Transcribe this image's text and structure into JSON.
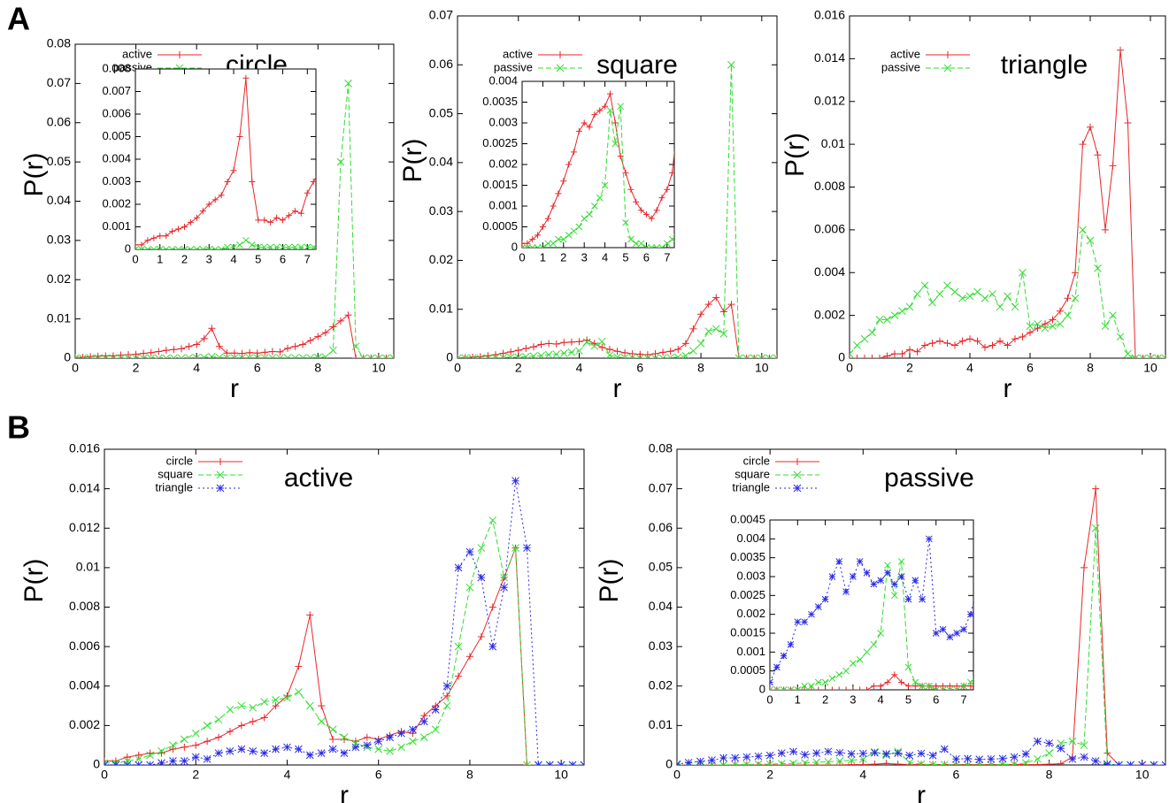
{
  "panel_labels": [
    "A",
    "B"
  ],
  "chart_data": [
    {
      "type": "line",
      "title": "circle",
      "xlabel": "r",
      "ylabel": "P(r)",
      "x": [
        0,
        0.25,
        0.5,
        0.75,
        1,
        1.25,
        1.5,
        1.75,
        2,
        2.25,
        2.5,
        2.75,
        3,
        3.25,
        3.5,
        3.75,
        4,
        4.25,
        4.5,
        4.75,
        5,
        5.25,
        5.5,
        5.75,
        6,
        6.25,
        6.5,
        6.75,
        7,
        7.25,
        7.5,
        7.75,
        8,
        8.25,
        8.5,
        8.75,
        9,
        9.25,
        9.5,
        9.75,
        10,
        10.25,
        10.5
      ],
      "series": [
        {
          "name": "active",
          "color": "#e8262a",
          "marker": "plus",
          "line_style": "solid",
          "values": [
            0.0002,
            0.0002,
            0.0004,
            0.0005,
            0.0006,
            0.0006,
            0.0008,
            0.0009,
            0.001,
            0.0012,
            0.0014,
            0.0017,
            0.002,
            0.0022,
            0.0024,
            0.003,
            0.0035,
            0.005,
            0.0076,
            0.003,
            0.0013,
            0.0013,
            0.0012,
            0.0014,
            0.0013,
            0.0015,
            0.0017,
            0.0016,
            0.0025,
            0.003,
            0.0035,
            0.0045,
            0.0055,
            0.0065,
            0.008,
            0.0095,
            0.011,
            0,
            0,
            0,
            0,
            0,
            0
          ]
        },
        {
          "name": "passive",
          "color": "#33dd33",
          "marker": "cross",
          "line_style": "dashed",
          "values": [
            0,
            0,
            0,
            0,
            0,
            0,
            0,
            0,
            0,
            0,
            0,
            0,
            0,
            0,
            0,
            0.0001,
            0.0001,
            0.0002,
            0.0004,
            0.0002,
            0.0001,
            0.0001,
            0.0001,
            0.0001,
            0.0001,
            0.0001,
            0.0001,
            0.0001,
            0.0001,
            0.0001,
            0.0001,
            0.0001,
            0.0002,
            0.0003,
            0.002,
            0.05,
            0.07,
            0.003,
            0,
            0,
            0,
            0,
            0
          ]
        }
      ],
      "xlim": [
        0,
        10.5
      ],
      "ylim": [
        0,
        0.08
      ],
      "xticks": [
        0,
        2,
        4,
        6,
        8,
        10
      ],
      "yticks": [
        0,
        0.01,
        0.02,
        0.03,
        0.04,
        0.05,
        0.06,
        0.07,
        0.08
      ],
      "inset": {
        "xlim": [
          0,
          7.35
        ],
        "ylim": [
          0,
          0.008
        ],
        "xticks": [
          0,
          1,
          2,
          3,
          4,
          5,
          6,
          7
        ],
        "yticks": [
          0,
          0.001,
          0.002,
          0.003,
          0.004,
          0.005,
          0.006,
          0.007,
          0.008
        ]
      }
    },
    {
      "type": "line",
      "title": "square",
      "xlabel": "r",
      "ylabel": "P(r)",
      "x": [
        0,
        0.25,
        0.5,
        0.75,
        1,
        1.25,
        1.5,
        1.75,
        2,
        2.25,
        2.5,
        2.75,
        3,
        3.25,
        3.5,
        3.75,
        4,
        4.25,
        4.5,
        4.75,
        5,
        5.25,
        5.5,
        5.75,
        6,
        6.25,
        6.5,
        6.75,
        7,
        7.25,
        7.5,
        7.75,
        8,
        8.25,
        8.5,
        8.75,
        9,
        9.25,
        9.5,
        9.75,
        10,
        10.25,
        10.5
      ],
      "series": [
        {
          "name": "active",
          "color": "#e8262a",
          "marker": "plus",
          "line_style": "solid",
          "values": [
            0.0001,
            0.0001,
            0.0002,
            0.0003,
            0.0005,
            0.0007,
            0.001,
            0.0013,
            0.0016,
            0.002,
            0.0023,
            0.0028,
            0.003,
            0.0029,
            0.0032,
            0.0033,
            0.0034,
            0.0037,
            0.003,
            0.0022,
            0.0018,
            0.0014,
            0.0011,
            0.0009,
            0.0008,
            0.0007,
            0.0009,
            0.0012,
            0.0014,
            0.0018,
            0.003,
            0.006,
            0.009,
            0.011,
            0.0124,
            0.0095,
            0.011,
            0,
            0,
            0,
            0,
            0,
            0
          ]
        },
        {
          "name": "passive",
          "color": "#33dd33",
          "marker": "cross",
          "line_style": "dashed",
          "values": [
            0,
            0,
            0,
            0,
            0,
            0.0001,
            0.0001,
            0.0002,
            0.0002,
            0.0003,
            0.0004,
            0.0005,
            0.0007,
            0.0008,
            0.001,
            0.0012,
            0.0015,
            0.0033,
            0.0025,
            0.0034,
            0.0006,
            0.0002,
            0.0001,
            0.0001,
            0,
            0,
            0,
            0,
            0.0001,
            0.0002,
            0.0005,
            0.0015,
            0.003,
            0.0055,
            0.006,
            0.005,
            0.06,
            0,
            0,
            0,
            0,
            0,
            0
          ]
        }
      ],
      "xlim": [
        0,
        10.5
      ],
      "ylim": [
        0,
        0.07
      ],
      "xticks": [
        0,
        2,
        4,
        6,
        8,
        10
      ],
      "yticks": [
        0,
        0.01,
        0.02,
        0.03,
        0.04,
        0.05,
        0.06,
        0.07
      ],
      "inset": {
        "xlim": [
          0,
          7.35
        ],
        "ylim": [
          0,
          0.004
        ],
        "xticks": [
          0,
          1,
          2,
          3,
          4,
          5,
          6,
          7
        ],
        "yticks": [
          0,
          0.0005,
          0.001,
          0.0015,
          0.002,
          0.0025,
          0.003,
          0.0035,
          0.004
        ]
      }
    },
    {
      "type": "line",
      "title": "triangle",
      "xlabel": "r",
      "ylabel": "P(r)",
      "x": [
        0,
        0.25,
        0.5,
        0.75,
        1,
        1.25,
        1.5,
        1.75,
        2,
        2.25,
        2.5,
        2.75,
        3,
        3.25,
        3.5,
        3.75,
        4,
        4.25,
        4.5,
        4.75,
        5,
        5.25,
        5.5,
        5.75,
        6,
        6.25,
        6.5,
        6.75,
        7,
        7.25,
        7.5,
        7.75,
        8,
        8.25,
        8.5,
        8.75,
        9,
        9.25,
        9.5,
        9.75,
        10,
        10.25,
        10.5
      ],
      "series": [
        {
          "name": "active",
          "color": "#e8262a",
          "marker": "plus",
          "line_style": "solid",
          "values": [
            0,
            0,
            0,
            0,
            0,
            0.0001,
            0.0002,
            0.0002,
            0.0004,
            0.0003,
            0.0006,
            0.0007,
            0.0008,
            0.0007,
            0.0006,
            0.0008,
            0.0009,
            0.0008,
            0.0005,
            0.0006,
            0.0008,
            0.0006,
            0.0009,
            0.001,
            0.0012,
            0.0014,
            0.0016,
            0.0018,
            0.0022,
            0.0028,
            0.004,
            0.01,
            0.0108,
            0.0095,
            0.006,
            0.009,
            0.0144,
            0.011,
            0,
            0,
            0,
            0,
            0
          ]
        },
        {
          "name": "passive",
          "color": "#33dd33",
          "marker": "cross",
          "line_style": "dashed",
          "values": [
            0.0002,
            0.0006,
            0.0009,
            0.0012,
            0.0018,
            0.0018,
            0.002,
            0.0022,
            0.0024,
            0.003,
            0.0034,
            0.0026,
            0.003,
            0.0034,
            0.0031,
            0.0028,
            0.0029,
            0.0031,
            0.0028,
            0.003,
            0.0024,
            0.0029,
            0.0024,
            0.004,
            0.0015,
            0.0016,
            0.0014,
            0.0015,
            0.0016,
            0.002,
            0.0028,
            0.006,
            0.0055,
            0.0042,
            0.0015,
            0.002,
            0.001,
            0.0002,
            0,
            0,
            0,
            0,
            0
          ]
        }
      ],
      "xlim": [
        0,
        10.5
      ],
      "ylim": [
        0,
        0.016
      ],
      "xticks": [
        0,
        2,
        4,
        6,
        8,
        10
      ],
      "yticks": [
        0,
        0.002,
        0.004,
        0.006,
        0.008,
        0.01,
        0.012,
        0.014,
        0.016
      ]
    },
    {
      "type": "line",
      "title": "active",
      "xlabel": "r",
      "ylabel": "P(r)",
      "x": [
        0,
        0.25,
        0.5,
        0.75,
        1,
        1.25,
        1.5,
        1.75,
        2,
        2.25,
        2.5,
        2.75,
        3,
        3.25,
        3.5,
        3.75,
        4,
        4.25,
        4.5,
        4.75,
        5,
        5.25,
        5.5,
        5.75,
        6,
        6.25,
        6.5,
        6.75,
        7,
        7.25,
        7.5,
        7.75,
        8,
        8.25,
        8.5,
        8.75,
        9,
        9.25,
        9.5,
        9.75,
        10,
        10.25,
        10.5
      ],
      "series": [
        {
          "name": "circle",
          "color": "#e8262a",
          "marker": "plus",
          "line_style": "solid",
          "values": [
            0.0002,
            0.0002,
            0.0004,
            0.0005,
            0.0006,
            0.0006,
            0.0008,
            0.0009,
            0.001,
            0.0012,
            0.0014,
            0.0017,
            0.002,
            0.0022,
            0.0024,
            0.003,
            0.0035,
            0.005,
            0.0076,
            0.003,
            0.0013,
            0.0013,
            0.0012,
            0.0014,
            0.0013,
            0.0015,
            0.0017,
            0.0016,
            0.0025,
            0.003,
            0.0035,
            0.0045,
            0.0055,
            0.0065,
            0.008,
            0.0095,
            0.011,
            0,
            0,
            0,
            0,
            0,
            0
          ]
        },
        {
          "name": "square",
          "color": "#33dd33",
          "marker": "cross",
          "line_style": "dashed",
          "values": [
            0.0001,
            0.0001,
            0.0002,
            0.0003,
            0.0005,
            0.0007,
            0.001,
            0.0013,
            0.0016,
            0.002,
            0.0023,
            0.0028,
            0.003,
            0.0029,
            0.0032,
            0.0033,
            0.0034,
            0.0037,
            0.003,
            0.0022,
            0.0018,
            0.0014,
            0.0011,
            0.0009,
            0.0008,
            0.0007,
            0.0009,
            0.0012,
            0.0014,
            0.0018,
            0.003,
            0.006,
            0.009,
            0.011,
            0.0124,
            0.0095,
            0.011,
            0,
            0,
            0,
            0,
            0,
            0
          ]
        },
        {
          "name": "triangle",
          "color": "#2a2ae8",
          "marker": "star",
          "line_style": "dotted",
          "values": [
            0,
            0,
            0,
            0,
            0,
            0.0001,
            0.0002,
            0.0002,
            0.0004,
            0.0003,
            0.0006,
            0.0007,
            0.0008,
            0.0007,
            0.0006,
            0.0008,
            0.0009,
            0.0008,
            0.0005,
            0.0006,
            0.0008,
            0.0006,
            0.0009,
            0.001,
            0.0012,
            0.0014,
            0.0016,
            0.0018,
            0.0022,
            0.0028,
            0.004,
            0.01,
            0.0108,
            0.0095,
            0.006,
            0.009,
            0.0144,
            0.011,
            0,
            0,
            0,
            0,
            0
          ]
        }
      ],
      "xlim": [
        0,
        10.5
      ],
      "ylim": [
        0,
        0.016
      ],
      "xticks": [
        0,
        2,
        4,
        6,
        8,
        10
      ],
      "yticks": [
        0,
        0.002,
        0.004,
        0.006,
        0.008,
        0.01,
        0.012,
        0.014,
        0.016
      ]
    },
    {
      "type": "line",
      "title": "passive",
      "xlabel": "r",
      "ylabel": "P(r)",
      "x": [
        0,
        0.25,
        0.5,
        0.75,
        1,
        1.25,
        1.5,
        1.75,
        2,
        2.25,
        2.5,
        2.75,
        3,
        3.25,
        3.5,
        3.75,
        4,
        4.25,
        4.5,
        4.75,
        5,
        5.25,
        5.5,
        5.75,
        6,
        6.25,
        6.5,
        6.75,
        7,
        7.25,
        7.5,
        7.75,
        8,
        8.25,
        8.5,
        8.75,
        9,
        9.25,
        9.5,
        9.75,
        10,
        10.25,
        10.5
      ],
      "series": [
        {
          "name": "circle",
          "color": "#e8262a",
          "marker": "plus",
          "line_style": "solid",
          "values": [
            0,
            0,
            0,
            0,
            0,
            0,
            0,
            0,
            0,
            0,
            0,
            0,
            0,
            0,
            0,
            0.0001,
            0.0001,
            0.0002,
            0.0004,
            0.0002,
            0.0001,
            0.0001,
            0.0001,
            0.0001,
            0.0001,
            0.0001,
            0.0001,
            0.0001,
            0.0001,
            0.0001,
            0.0001,
            0.0001,
            0.0002,
            0.0003,
            0.002,
            0.05,
            0.07,
            0.003,
            0,
            0,
            0,
            0,
            0
          ]
        },
        {
          "name": "square",
          "color": "#33dd33",
          "marker": "cross",
          "line_style": "dashed",
          "values": [
            0,
            0,
            0,
            0,
            0,
            0.0001,
            0.0001,
            0.0002,
            0.0002,
            0.0003,
            0.0004,
            0.0005,
            0.0007,
            0.0008,
            0.001,
            0.0012,
            0.0015,
            0.0033,
            0.0025,
            0.0034,
            0.0006,
            0.0002,
            0.0001,
            0.0001,
            0,
            0,
            0,
            0,
            0.0001,
            0.0002,
            0.0005,
            0.0015,
            0.003,
            0.0055,
            0.006,
            0.005,
            0.06,
            0,
            0,
            0,
            0,
            0,
            0
          ]
        },
        {
          "name": "triangle",
          "color": "#2a2ae8",
          "marker": "star",
          "line_style": "dotted",
          "values": [
            0.0002,
            0.0006,
            0.0009,
            0.0012,
            0.0018,
            0.0018,
            0.002,
            0.0022,
            0.0024,
            0.003,
            0.0034,
            0.0026,
            0.003,
            0.0034,
            0.0031,
            0.0028,
            0.0029,
            0.0031,
            0.0028,
            0.003,
            0.0024,
            0.0029,
            0.0024,
            0.004,
            0.0015,
            0.0016,
            0.0014,
            0.0015,
            0.0016,
            0.002,
            0.0028,
            0.006,
            0.0055,
            0.0042,
            0.0015,
            0.002,
            0.001,
            0.0002,
            0,
            0,
            0,
            0,
            0
          ]
        }
      ],
      "xlim": [
        0,
        10.5
      ],
      "ylim": [
        0,
        0.08
      ],
      "xticks": [
        0,
        2,
        4,
        6,
        8,
        10
      ],
      "yticks": [
        0,
        0.01,
        0.02,
        0.03,
        0.04,
        0.05,
        0.06,
        0.07,
        0.08
      ],
      "inset": {
        "xlim": [
          0,
          7.35
        ],
        "ylim": [
          0,
          0.0045
        ],
        "xticks": [
          0,
          1,
          2,
          3,
          4,
          5,
          6,
          7
        ],
        "yticks": [
          0,
          0.0005,
          0.001,
          0.0015,
          0.002,
          0.0025,
          0.003,
          0.0035,
          0.004,
          0.0045
        ]
      }
    }
  ]
}
